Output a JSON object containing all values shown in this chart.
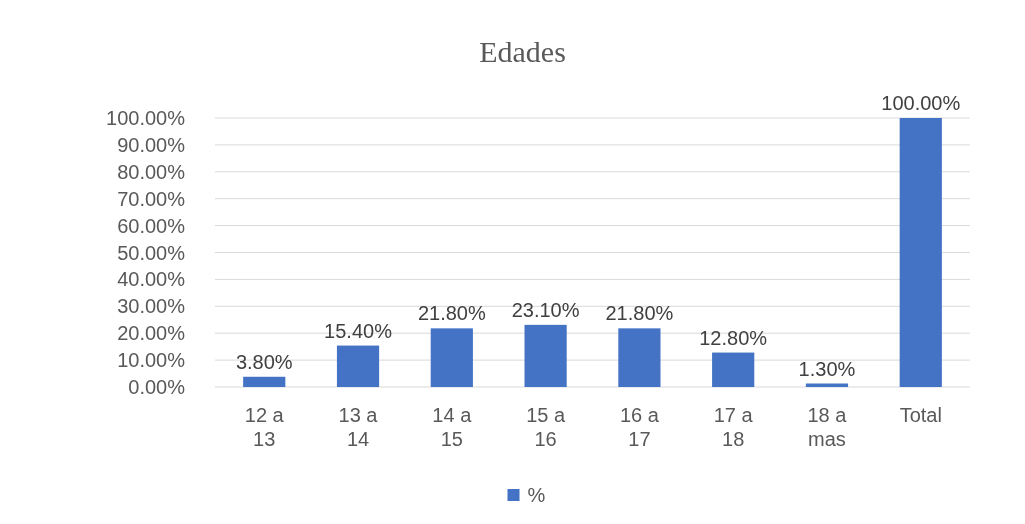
{
  "chart_data": {
    "type": "bar",
    "title": "Edades",
    "categories": [
      "12 a 13",
      "13 a 14",
      "14 a 15",
      "15 a 16",
      "16 a 17",
      "17 a 18",
      "18 a mas",
      "Total"
    ],
    "series": [
      {
        "name": "%",
        "color": "#4472c4",
        "values": [
          3.8,
          15.4,
          21.8,
          23.1,
          21.8,
          12.8,
          1.3,
          100
        ],
        "value_labels": [
          "3.80%",
          "15.40%",
          "21.80%",
          "23.10%",
          "21.80%",
          "12.80%",
          "1.30%",
          "100.00%"
        ]
      }
    ],
    "ylim": [
      0,
      100
    ],
    "yticks": [
      {
        "value": 0,
        "label": "0.00%"
      },
      {
        "value": 10,
        "label": "10.00%"
      },
      {
        "value": 20,
        "label": "20.00%"
      },
      {
        "value": 30,
        "label": "30.00%"
      },
      {
        "value": 40,
        "label": "40.00%"
      },
      {
        "value": 50,
        "label": "50.00%"
      },
      {
        "value": 60,
        "label": "60.00%"
      },
      {
        "value": 70,
        "label": "70.00%"
      },
      {
        "value": 80,
        "label": "80.00%"
      },
      {
        "value": 90,
        "label": "90.00%"
      },
      {
        "value": 100,
        "label": "100.00%"
      }
    ],
    "grid": "y",
    "legend": "bottom"
  }
}
